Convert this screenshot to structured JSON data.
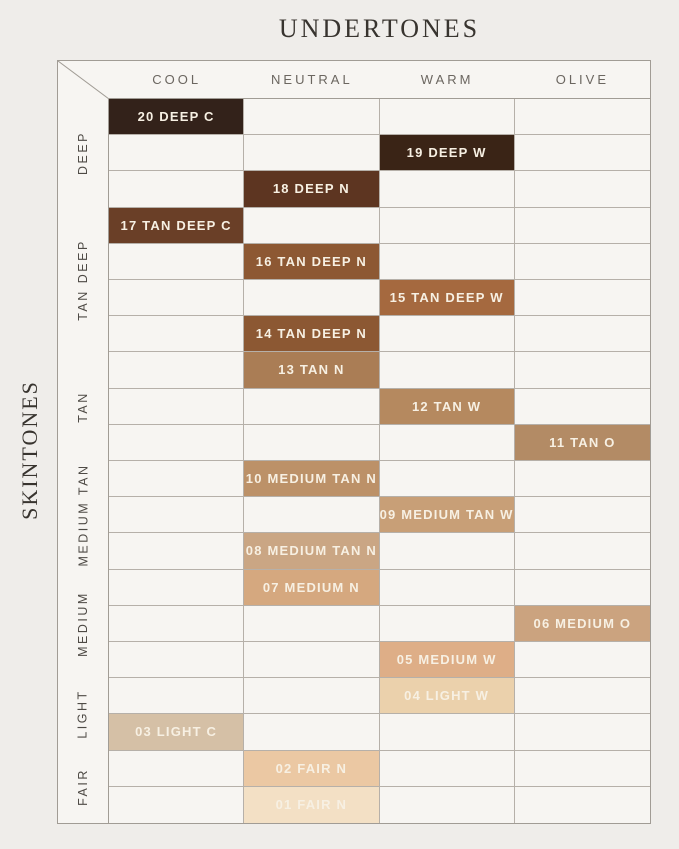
{
  "chart_data": {
    "type": "heatmap",
    "title": "UNDERTONES",
    "row_axis_title": "SKINTONES",
    "columns": [
      "COOL",
      "NEUTRAL",
      "WARM",
      "OLIVE"
    ],
    "row_groups": [
      {
        "label": "DEEP",
        "row_span": 3
      },
      {
        "label": "TAN DEEP",
        "row_span": 4
      },
      {
        "label": "TAN",
        "row_span": 3
      },
      {
        "label": "MEDIUM TAN",
        "row_span": 3
      },
      {
        "label": "MEDIUM",
        "row_span": 3
      },
      {
        "label": "LIGHT",
        "row_span": 2
      },
      {
        "label": "FAIR",
        "row_span": 2
      }
    ],
    "total_rows": 20,
    "shades": [
      {
        "row": 1,
        "column": "COOL",
        "label": "20 DEEP C",
        "color": "#33221a"
      },
      {
        "row": 2,
        "column": "WARM",
        "label": "19 DEEP W",
        "color": "#3a2416"
      },
      {
        "row": 3,
        "column": "NEUTRAL",
        "label": "18 DEEP N",
        "color": "#5d3521"
      },
      {
        "row": 4,
        "column": "COOL",
        "label": "17 TAN DEEP C",
        "color": "#6a3f27"
      },
      {
        "row": 5,
        "column": "NEUTRAL",
        "label": "16 TAN DEEP N",
        "color": "#8d5833"
      },
      {
        "row": 6,
        "column": "WARM",
        "label": "15 TAN DEEP W",
        "color": "#a5693f"
      },
      {
        "row": 7,
        "column": "NEUTRAL",
        "label": "14 TAN DEEP N",
        "color": "#8c5833"
      },
      {
        "row": 8,
        "column": "NEUTRAL",
        "label": "13 TAN N",
        "color": "#aa7d55"
      },
      {
        "row": 9,
        "column": "WARM",
        "label": "12 TAN W",
        "color": "#b5895f"
      },
      {
        "row": 10,
        "column": "OLIVE",
        "label": "11 TAN O",
        "color": "#b38b65"
      },
      {
        "row": 11,
        "column": "NEUTRAL",
        "label": "10 MEDIUM TAN N",
        "color": "#bc9168"
      },
      {
        "row": 12,
        "column": "WARM",
        "label": "09 MEDIUM TAN W",
        "color": "#c89f77"
      },
      {
        "row": 13,
        "column": "NEUTRAL",
        "label": "08 MEDIUM TAN N",
        "color": "#caa684"
      },
      {
        "row": 14,
        "column": "NEUTRAL",
        "label": "07 MEDIUM N",
        "color": "#d5a87f"
      },
      {
        "row": 15,
        "column": "OLIVE",
        "label": "06 MEDIUM O",
        "color": "#cba37f"
      },
      {
        "row": 16,
        "column": "WARM",
        "label": "05 MEDIUM W",
        "color": "#deae87"
      },
      {
        "row": 17,
        "column": "WARM",
        "label": "04 LIGHT W",
        "color": "#ebd1ac"
      },
      {
        "row": 18,
        "column": "COOL",
        "label": "03 LIGHT C",
        "color": "#d5c0a6"
      },
      {
        "row": 19,
        "column": "NEUTRAL",
        "label": "02 FAIR N",
        "color": "#ebc8a3"
      },
      {
        "row": 20,
        "column": "NEUTRAL",
        "label": "01 FAIR N",
        "color": "#f3e0c5"
      }
    ],
    "layout": {
      "legend": "none",
      "grid": "on"
    },
    "style": {
      "page_background": "#efedea",
      "table_background": "#f7f5f2",
      "gridline_color": "#b6b0a9",
      "outer_border_color": "#a19c95",
      "cell_text_color": "#f7f0e3",
      "header_text_color": "#6b6660",
      "axis_text_color": "#38342f"
    }
  }
}
